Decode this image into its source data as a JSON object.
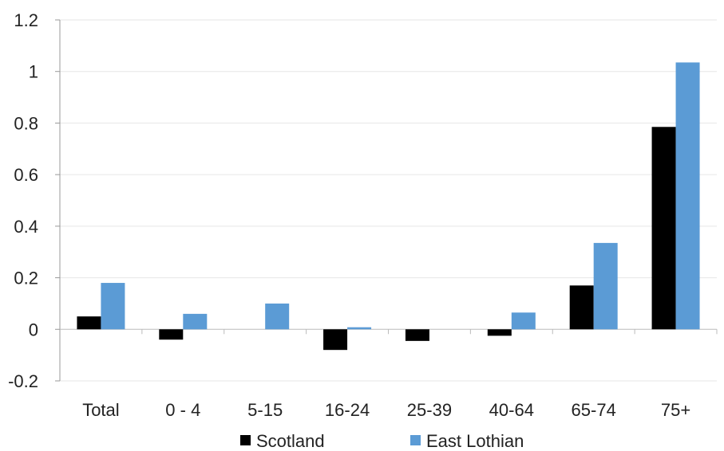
{
  "chart_data": {
    "type": "bar",
    "categories": [
      "Total",
      "0 - 4",
      "5-15",
      "16-24",
      "25-39",
      "40-64",
      "65-74",
      "75+"
    ],
    "series": [
      {
        "name": "Scotland",
        "color": "#000000",
        "values": [
          0.05,
          -0.04,
          0.0,
          -0.08,
          -0.045,
          -0.025,
          0.17,
          0.785
        ]
      },
      {
        "name": "East Lothian",
        "color": "#5b9bd5",
        "values": [
          0.18,
          0.06,
          0.1,
          0.008,
          0.0,
          0.065,
          0.335,
          1.035
        ]
      }
    ],
    "yticks": [
      "1.2",
      "1",
      "0.8",
      "0.6",
      "0.4",
      "0.2",
      "0",
      "-0.2"
    ],
    "ylim": [
      -0.2,
      1.2
    ],
    "grid": true,
    "legend_position": "bottom"
  }
}
